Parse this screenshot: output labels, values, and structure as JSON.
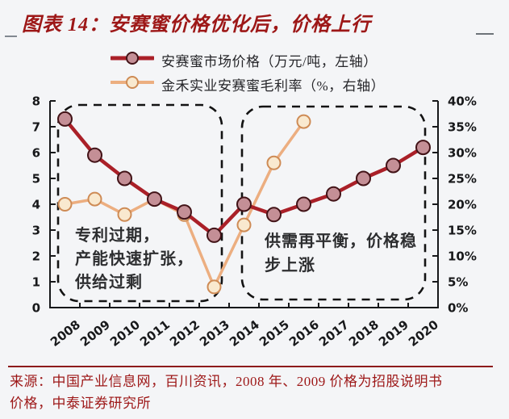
{
  "header": {
    "title": "图表 14：安赛蜜价格优化后，价格上行",
    "color": "#9d1717"
  },
  "legend": {
    "items": [
      {
        "label": "安赛蜜市场价格（万元/吨，左轴）"
      },
      {
        "label": "金禾实业安赛蜜毛利率（%，右轴）"
      }
    ]
  },
  "chart_data": {
    "type": "line",
    "categories": [
      "2008",
      "2009",
      "2010",
      "2011",
      "2012",
      "2013",
      "2014",
      "2015",
      "2016",
      "2017",
      "2018",
      "2019",
      "2020"
    ],
    "series": [
      {
        "name": "安赛蜜市场价格（万元/吨，左轴）",
        "axis": "left",
        "unit": "万元/吨",
        "values": [
          7.3,
          5.9,
          5.0,
          4.2,
          3.7,
          2.8,
          4.0,
          3.6,
          4.0,
          4.4,
          5.0,
          5.5,
          6.2
        ],
        "line_color": "#aa2028",
        "marker_fill": "#c48f96",
        "marker_stroke": "#421317"
      },
      {
        "name": "金禾实业安赛蜜毛利率（%，右轴）",
        "axis": "right",
        "unit": "%",
        "values": [
          20,
          21,
          18,
          21,
          18,
          4,
          16,
          28,
          36,
          null,
          null,
          null,
          null
        ],
        "line_color": "#ecae80",
        "marker_fill": "#f9e9cf",
        "marker_stroke": "#ce8b55"
      }
    ],
    "left_axis": {
      "min": 0,
      "max": 8,
      "tick_values": [
        8,
        7,
        6,
        5,
        4,
        3,
        2,
        1,
        0
      ],
      "tick_labels": [
        "8",
        "7",
        "6",
        "5",
        "4",
        "3",
        "2",
        "1",
        "0"
      ]
    },
    "right_axis": {
      "min": 0,
      "max": 40,
      "tick_values": [
        40,
        35,
        30,
        25,
        20,
        15,
        10,
        5,
        0
      ],
      "tick_labels": [
        "40%",
        "35%",
        "30%",
        "25%",
        "20%",
        "15%",
        "10%",
        "5%",
        "0%"
      ]
    },
    "grid": false,
    "legend_position": "top",
    "annotations": [
      {
        "lines": [
          "专利过期，",
          "产能快速扩张，",
          "供给过剩"
        ],
        "year_range": [
          "2008",
          "2013"
        ]
      },
      {
        "lines": [
          "供需再平衡，价格稳",
          "步上涨"
        ],
        "year_range": [
          "2014",
          "2020"
        ]
      }
    ]
  },
  "footer": {
    "lines": [
      "来源：中国产业信息网，百川资讯，2008 年、2009 价格为招股说明书",
      "价格，中泰证券研究所"
    ],
    "color": "#9d1717"
  }
}
